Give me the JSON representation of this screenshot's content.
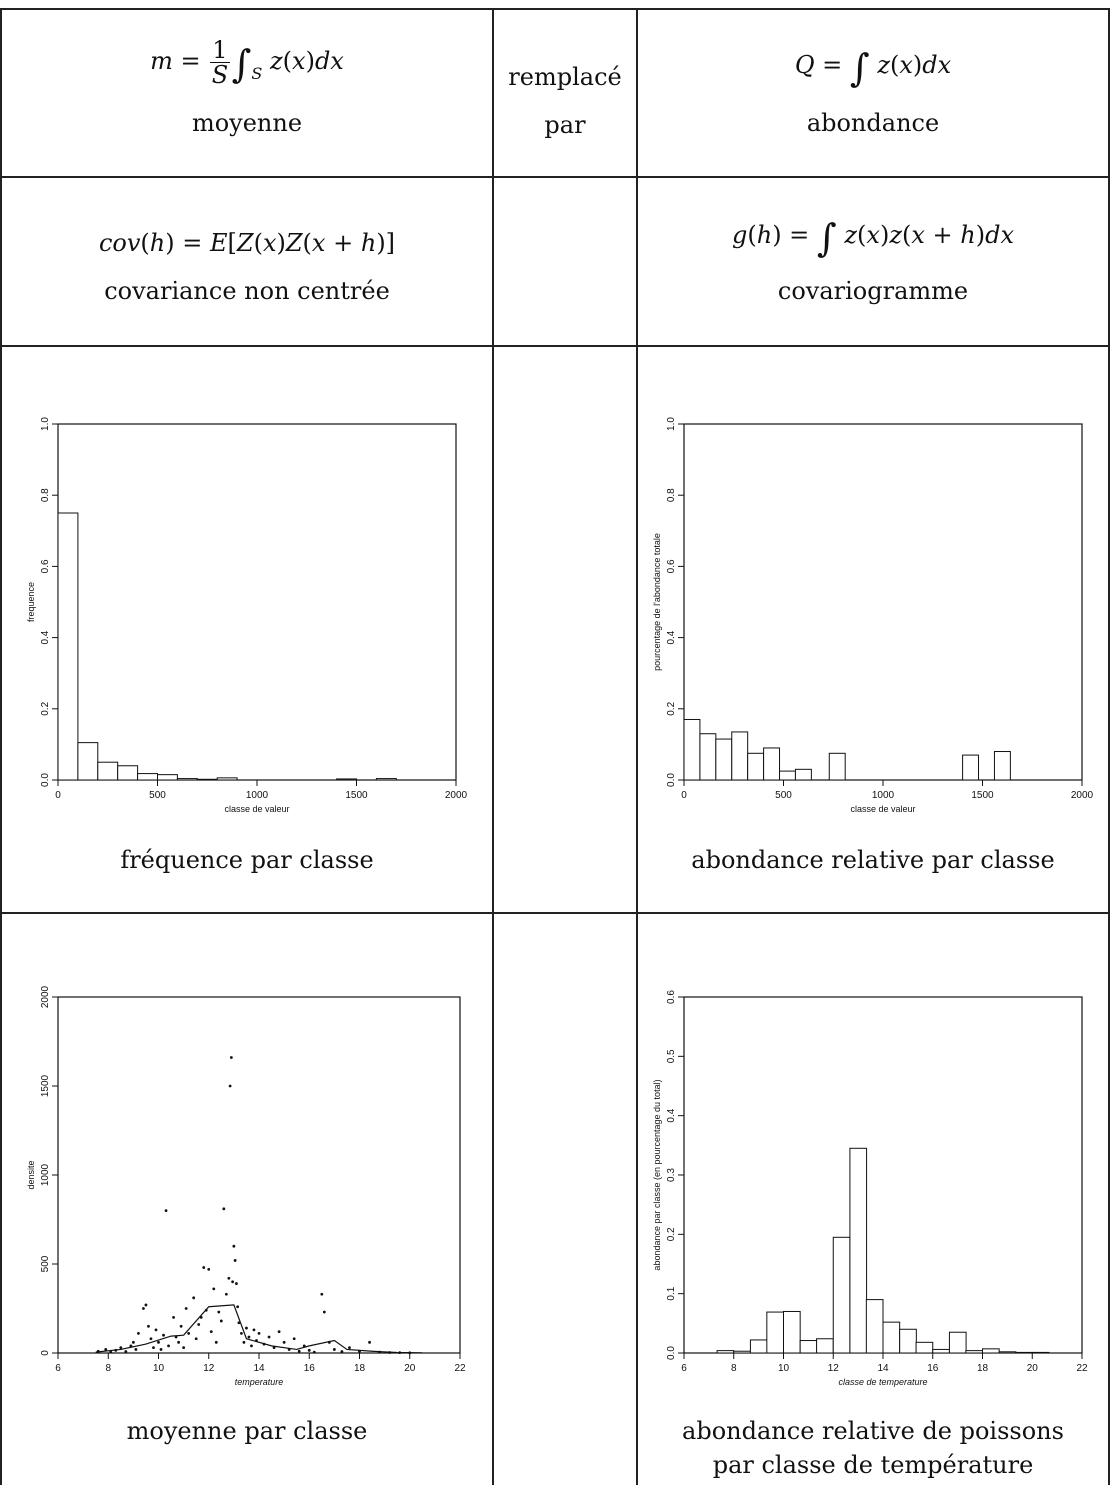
{
  "row1": {
    "left_caption": "moyenne",
    "middle_line1": "remplacé",
    "middle_line2": "par",
    "right_caption": "abondance"
  },
  "row2": {
    "left_caption": "covariance non centrée",
    "right_caption": "covariogramme"
  },
  "row3": {
    "left_caption": "fréquence par classe",
    "right_caption": "abondance relative par classe"
  },
  "row4": {
    "left_caption": "moyenne par classe",
    "right_caption_line1": "abondance relative de poissons",
    "right_caption_line2": "par classe de température"
  },
  "chart_data": [
    {
      "type": "bar",
      "xlabel": "classe de valeur",
      "ylabel": "frequence",
      "xlim": [
        0,
        2000
      ],
      "ylim": [
        0,
        1
      ],
      "xticks": [
        0,
        500,
        1000,
        1500,
        2000
      ],
      "yticks": [
        0.0,
        0.2,
        0.4,
        0.6,
        0.8,
        1.0
      ],
      "bin_width": 100,
      "bin_starts": [
        0,
        100,
        200,
        300,
        400,
        500,
        600,
        700,
        800,
        1400,
        1600
      ],
      "values": [
        0.75,
        0.105,
        0.05,
        0.04,
        0.018,
        0.015,
        0.004,
        0.002,
        0.006,
        0.003,
        0.004
      ]
    },
    {
      "type": "bar",
      "xlabel": "classe de valeur",
      "ylabel": "pourcentage de l'abondance totale",
      "xlim": [
        0,
        2000
      ],
      "ylim": [
        0,
        1
      ],
      "xticks": [
        0,
        500,
        1000,
        1500,
        2000
      ],
      "yticks": [
        0.0,
        0.2,
        0.4,
        0.6,
        0.8,
        1.0
      ],
      "bin_width": 80,
      "bin_starts": [
        0,
        80,
        160,
        240,
        320,
        400,
        480,
        560,
        730,
        1400,
        1560
      ],
      "values": [
        0.17,
        0.13,
        0.115,
        0.135,
        0.075,
        0.09,
        0.025,
        0.03,
        0.075,
        0.07,
        0.08
      ]
    },
    {
      "type": "scatter",
      "xlabel": "temperature",
      "ylabel": "densite",
      "xlim": [
        6,
        22
      ],
      "ylim": [
        0,
        2000
      ],
      "xticks": [
        6,
        8,
        10,
        12,
        14,
        16,
        18,
        20,
        22
      ],
      "yticks": [
        0,
        500,
        1000,
        1500,
        2000
      ],
      "points": [
        [
          7.6,
          10
        ],
        [
          7.9,
          20
        ],
        [
          8.1,
          5
        ],
        [
          8.3,
          15
        ],
        [
          8.5,
          30
        ],
        [
          8.7,
          8
        ],
        [
          8.9,
          40
        ],
        [
          9.0,
          60
        ],
        [
          9.1,
          20
        ],
        [
          9.2,
          110
        ],
        [
          9.4,
          250
        ],
        [
          9.5,
          270
        ],
        [
          9.6,
          150
        ],
        [
          9.7,
          80
        ],
        [
          9.8,
          30
        ],
        [
          9.9,
          130
        ],
        [
          10.0,
          60
        ],
        [
          10.1,
          20
        ],
        [
          10.2,
          100
        ],
        [
          10.3,
          800
        ],
        [
          10.4,
          40
        ],
        [
          10.6,
          200
        ],
        [
          10.7,
          90
        ],
        [
          10.8,
          60
        ],
        [
          10.9,
          150
        ],
        [
          11.0,
          30
        ],
        [
          11.1,
          250
        ],
        [
          11.2,
          110
        ],
        [
          11.4,
          310
        ],
        [
          11.5,
          80
        ],
        [
          11.6,
          160
        ],
        [
          11.7,
          200
        ],
        [
          11.8,
          480
        ],
        [
          11.9,
          240
        ],
        [
          12.0,
          470
        ],
        [
          12.1,
          120
        ],
        [
          12.2,
          360
        ],
        [
          12.3,
          60
        ],
        [
          12.4,
          230
        ],
        [
          12.5,
          180
        ],
        [
          12.6,
          810
        ],
        [
          12.7,
          330
        ],
        [
          12.8,
          420
        ],
        [
          12.85,
          1500
        ],
        [
          12.9,
          1660
        ],
        [
          12.95,
          400
        ],
        [
          13.0,
          600
        ],
        [
          13.05,
          520
        ],
        [
          13.1,
          390
        ],
        [
          13.15,
          260
        ],
        [
          13.2,
          170
        ],
        [
          13.3,
          110
        ],
        [
          13.4,
          60
        ],
        [
          13.5,
          140
        ],
        [
          13.6,
          90
        ],
        [
          13.7,
          40
        ],
        [
          13.8,
          130
        ],
        [
          13.9,
          70
        ],
        [
          14.0,
          110
        ],
        [
          14.2,
          50
        ],
        [
          14.4,
          90
        ],
        [
          14.6,
          30
        ],
        [
          14.8,
          120
        ],
        [
          15.0,
          60
        ],
        [
          15.2,
          20
        ],
        [
          15.4,
          80
        ],
        [
          15.6,
          10
        ],
        [
          15.8,
          40
        ],
        [
          16.0,
          15
        ],
        [
          16.2,
          5
        ],
        [
          16.5,
          330
        ],
        [
          16.6,
          230
        ],
        [
          16.8,
          60
        ],
        [
          17.0,
          20
        ],
        [
          17.3,
          8
        ],
        [
          17.6,
          30
        ],
        [
          18.0,
          10
        ],
        [
          18.4,
          60
        ],
        [
          18.8,
          5
        ],
        [
          19.2,
          3
        ],
        [
          19.6,
          2
        ],
        [
          20.0,
          1
        ]
      ],
      "mean_line": {
        "x": [
          7.5,
          8.5,
          9.5,
          10.5,
          11.0,
          12.0,
          13.0,
          13.5,
          14.5,
          15.5,
          16.0,
          17.0,
          17.5,
          18.5,
          19.5,
          20.5
        ],
        "y": [
          5,
          20,
          50,
          95,
          100,
          260,
          270,
          80,
          40,
          20,
          40,
          70,
          20,
          10,
          3,
          1
        ]
      }
    },
    {
      "type": "bar",
      "xlabel": "classe de temperature",
      "ylabel": "abondance par classe (en pourcentage du total)",
      "xlim": [
        6,
        22
      ],
      "ylim": [
        0,
        0.6
      ],
      "xticks": [
        6,
        8,
        10,
        12,
        14,
        16,
        18,
        20,
        22
      ],
      "yticks": [
        0.0,
        0.1,
        0.2,
        0.3,
        0.4,
        0.5,
        0.6
      ],
      "bin_width": 0.67,
      "bin_starts": [
        7.33,
        8.0,
        8.67,
        9.33,
        10.0,
        10.67,
        11.33,
        12.0,
        12.67,
        13.33,
        14.0,
        14.67,
        15.33,
        16.0,
        16.67,
        17.33,
        18.0,
        18.67,
        19.33,
        20.0
      ],
      "values": [
        0.004,
        0.003,
        0.022,
        0.069,
        0.07,
        0.021,
        0.024,
        0.195,
        0.345,
        0.09,
        0.052,
        0.04,
        0.018,
        0.006,
        0.035,
        0.004,
        0.007,
        0.002,
        0.001,
        0.001
      ]
    }
  ]
}
